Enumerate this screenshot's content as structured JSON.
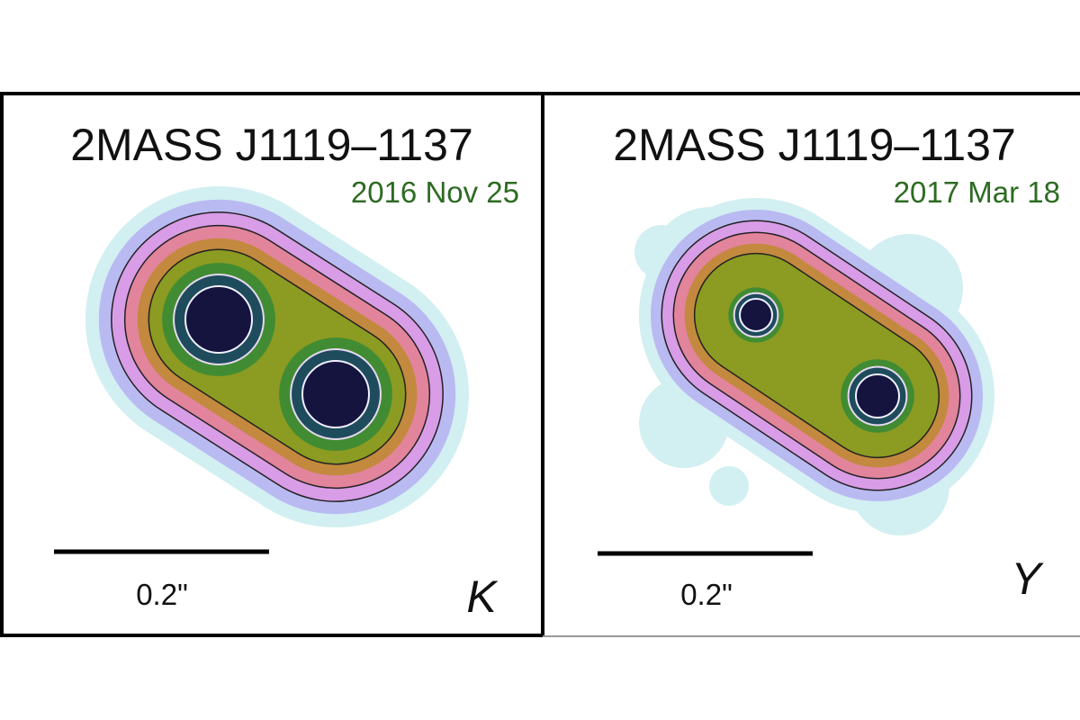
{
  "panels": [
    {
      "title": "2MASS J1119–1137",
      "date": "2016 Nov 25",
      "scale_label": "0.2\"",
      "band": "K"
    },
    {
      "title": "2MASS J1119–1137",
      "date": "2017 Mar 18",
      "scale_label": "0.2\"",
      "band": "Y"
    }
  ]
}
